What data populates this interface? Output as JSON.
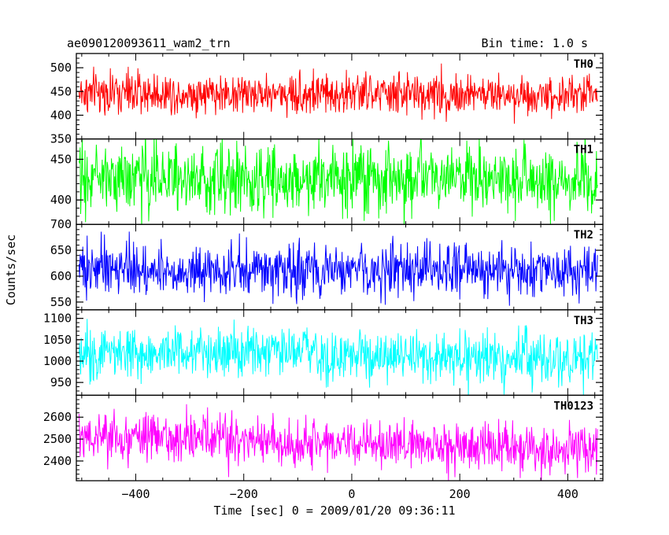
{
  "chart_data": {
    "type": "line",
    "title": "ae090120093611_wam2_trn",
    "bin_time_label": "Bin time: 1.0 s",
    "xlabel": "Time [sec] 0 = 2009/01/20 09:36:11",
    "ylabel": "Counts/sec",
    "xlim": [
      -510,
      465
    ],
    "x_range": [
      -505,
      455
    ],
    "x_step": 1,
    "x_ticks": [
      -400,
      -200,
      0,
      200,
      400
    ],
    "x_minor_step": 50,
    "grid": false,
    "series": [
      {
        "name": "TH0",
        "color": "#ff0000",
        "mean": 447,
        "noise_amplitude": 22,
        "trend": -4,
        "ylim": [
          350,
          530
        ],
        "y_ticks": [
          350,
          400,
          450,
          500
        ],
        "y_minor_step": 10
      },
      {
        "name": "TH1",
        "color": "#00ff00",
        "mean": 428,
        "noise_amplitude": 21,
        "trend": -4,
        "ylim": [
          370,
          475
        ],
        "y_ticks": [
          400,
          450
        ],
        "y_minor_step": 10
      },
      {
        "name": "TH2",
        "color": "#0000ff",
        "mean": 615,
        "noise_amplitude": 25,
        "trend": -8,
        "ylim": [
          535,
          700
        ],
        "y_ticks": [
          550,
          600,
          650,
          700
        ],
        "y_minor_step": 10
      },
      {
        "name": "TH3",
        "color": "#00ffff",
        "mean": 1025,
        "noise_amplitude": 30,
        "trend": -25,
        "ylim": [
          920,
          1120
        ],
        "y_ticks": [
          950,
          1000,
          1050,
          1100
        ],
        "y_minor_step": 10
      },
      {
        "name": "TH0123",
        "color": "#ff00ff",
        "mean": 2510,
        "noise_amplitude": 55,
        "trend": -60,
        "ylim": [
          2310,
          2700
        ],
        "y_ticks": [
          2400,
          2500,
          2600
        ],
        "y_minor_step": 20
      }
    ]
  }
}
